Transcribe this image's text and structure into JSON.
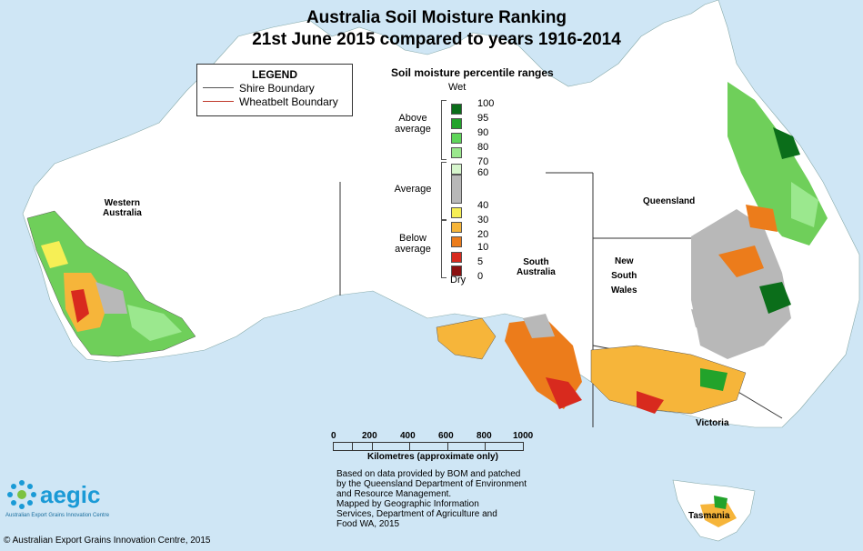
{
  "title": {
    "line1": "Australia Soil Moisture Ranking",
    "line2": "21st June 2015 compared to years 1916-2014"
  },
  "legend": {
    "heading": "LEGEND",
    "items": [
      {
        "label": "Shire Boundary",
        "color": "#555555"
      },
      {
        "label": "Wheatbelt Boundary",
        "color": "#c0392b"
      }
    ]
  },
  "percentile_scale": {
    "title": "Soil moisture percentile ranges",
    "wet_label": "Wet",
    "dry_label": "Dry",
    "groups": [
      {
        "line1": "Above",
        "line2": "average"
      },
      {
        "line1": "Average",
        "line2": ""
      },
      {
        "line1": "Below",
        "line2": "average"
      }
    ],
    "percentiles": [
      "100",
      "95",
      "90",
      "80",
      "70",
      "60",
      "40",
      "30",
      "20",
      "10",
      "5",
      "0"
    ],
    "swatches": [
      {
        "color": "#0b6e1a"
      },
      {
        "color": "#22a32b"
      },
      {
        "color": "#5fd55a"
      },
      {
        "color": "#9be88e"
      },
      {
        "color": "#d6f5cc"
      },
      {
        "color": "#b8b8b8"
      },
      {
        "color": "#f6ef55"
      },
      {
        "color": "#f6b53a"
      },
      {
        "color": "#ec7c1b"
      },
      {
        "color": "#d82a1e"
      },
      {
        "color": "#8b1010"
      }
    ]
  },
  "regions": {
    "western_australia_1": "Western",
    "western_australia_2": "Australia",
    "south_australia_1": "South",
    "south_australia_2": "Australia",
    "queensland": "Queensland",
    "nsw_1": "New",
    "nsw_2": "South",
    "nsw_3": "Wales",
    "victoria": "Victoria",
    "tasmania": "Tasmania"
  },
  "scalebar": {
    "ticks": [
      "0",
      "200",
      "400",
      "600",
      "800",
      "1000"
    ],
    "label": "Kilometres (approximate only)"
  },
  "credits": {
    "line1": "Based on data provided by BOM and patched",
    "line2": "by the Queensland Department of Environment",
    "line3": "and Resource Management.",
    "line4": "Mapped by Geographic Information",
    "line5": "Services, Department of Agriculture and",
    "line6": "Food WA, 2015"
  },
  "logo": {
    "name": "aegic",
    "tagline": "Australian Export Grains Innovation Centre"
  },
  "copyright": "© Australian Export Grains Innovation Centre, 2015"
}
